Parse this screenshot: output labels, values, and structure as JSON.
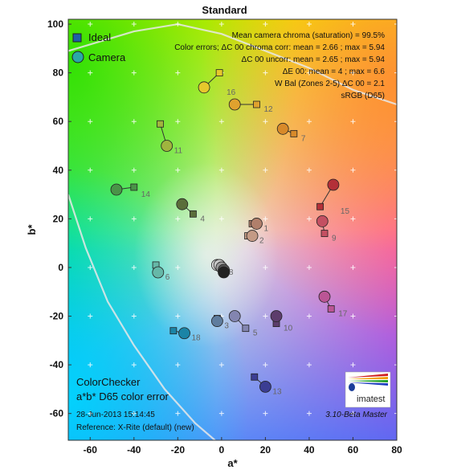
{
  "chart_data": {
    "type": "scatter",
    "title": "Standard",
    "xlabel": "a*",
    "ylabel": "b*",
    "xlim": [
      -70,
      80
    ],
    "ylim": [
      -71,
      102
    ],
    "x_ticks": [
      -60,
      -40,
      -20,
      0,
      20,
      40,
      60,
      80
    ],
    "y_ticks": [
      -60,
      -40,
      -20,
      0,
      20,
      40,
      60,
      80,
      100
    ],
    "grid": false,
    "background": "CIE a*b* color plane gradient",
    "legend": {
      "position": "top-left",
      "items": [
        {
          "label": "Ideal",
          "marker": "square",
          "color": "#1f5fa8"
        },
        {
          "label": "Camera",
          "marker": "circle",
          "color": "#2aa8a8"
        }
      ]
    },
    "stats_text": [
      "Mean camera chroma (saturation) = 99.5%",
      "Color errors;  ΔC 00 chroma corr:  mean = 2.66 ;  max = 5.94",
      "ΔC 00 uncorr:  mean = 2.65 ;  max = 5.94",
      "ΔE 00:  mean = 4 ;  max = 6.6",
      "W Bal (Zones 2-5) ΔC 00 = 2.1",
      "sRGB (D65)"
    ],
    "bottom_left_text": [
      "ColorChecker",
      "a*b* D65 color error",
      "28-Jun-2013 15:14:45",
      "Reference: X-Rite (default) (new)"
    ],
    "version_text": "3.10-Beta  Master",
    "logo_text": "imatest",
    "patches": [
      {
        "id": "1",
        "ideal": [
          14,
          18
        ],
        "camera": [
          16,
          18
        ],
        "color": "#b07f6b"
      },
      {
        "id": "2",
        "ideal": [
          12,
          13
        ],
        "camera": [
          14,
          13
        ],
        "color": "#c49a85"
      },
      {
        "id": "3",
        "ideal": [
          -2,
          -21
        ],
        "camera": [
          -2,
          -22
        ],
        "color": "#5f7d9e"
      },
      {
        "id": "4",
        "ideal": [
          -13,
          22
        ],
        "camera": [
          -18,
          26
        ],
        "color": "#5b6e3a"
      },
      {
        "id": "5",
        "ideal": [
          11,
          -25
        ],
        "camera": [
          6,
          -20
        ],
        "color": "#8385b0"
      },
      {
        "id": "6",
        "ideal": [
          -30,
          1
        ],
        "camera": [
          -29,
          -2
        ],
        "color": "#66b8a8"
      },
      {
        "id": "7",
        "ideal": [
          33,
          55
        ],
        "camera": [
          28,
          57
        ],
        "color": "#d88a2a"
      },
      {
        "id": "8",
        "ideal": [
          0,
          0
        ],
        "camera": [
          -2,
          1
        ],
        "color": "#e0e0e0"
      },
      {
        "id": "9",
        "ideal": [
          47,
          14
        ],
        "camera": [
          46,
          19
        ],
        "color": "#c45062"
      },
      {
        "id": "10",
        "ideal": [
          25,
          -23
        ],
        "camera": [
          25,
          -20
        ],
        "color": "#5d3d6c"
      },
      {
        "id": "11",
        "ideal": [
          -28,
          59
        ],
        "camera": [
          -25,
          50
        ],
        "color": "#a0b43e"
      },
      {
        "id": "12",
        "ideal": [
          16,
          67
        ],
        "camera": [
          6,
          67
        ],
        "color": "#e0a22e"
      },
      {
        "id": "13",
        "ideal": [
          15,
          -45
        ],
        "camera": [
          20,
          -49
        ],
        "color": "#3b3d93"
      },
      {
        "id": "14",
        "ideal": [
          -40,
          33
        ],
        "camera": [
          -48,
          32
        ],
        "color": "#4a9448"
      },
      {
        "id": "15",
        "ideal": [
          45,
          25
        ],
        "camera": [
          51,
          34
        ],
        "color": "#b43038"
      },
      {
        "id": "16",
        "ideal": [
          -1,
          80
        ],
        "camera": [
          -8,
          74
        ],
        "color": "#e6c82c"
      },
      {
        "id": "17",
        "ideal": [
          50,
          -17
        ],
        "camera": [
          47,
          -12
        ],
        "color": "#bb5595"
      },
      {
        "id": "18",
        "ideal": [
          -22,
          -26
        ],
        "camera": [
          -17,
          -27
        ],
        "color": "#1b84a6"
      }
    ],
    "neutral_patches": [
      {
        "camera": [
          -1,
          1
        ],
        "color": "#c8c8c8"
      },
      {
        "camera": [
          0,
          0
        ],
        "color": "#999999"
      },
      {
        "camera": [
          1,
          -1
        ],
        "color": "#555555"
      },
      {
        "camera": [
          1,
          -2
        ],
        "color": "#222222"
      }
    ]
  }
}
